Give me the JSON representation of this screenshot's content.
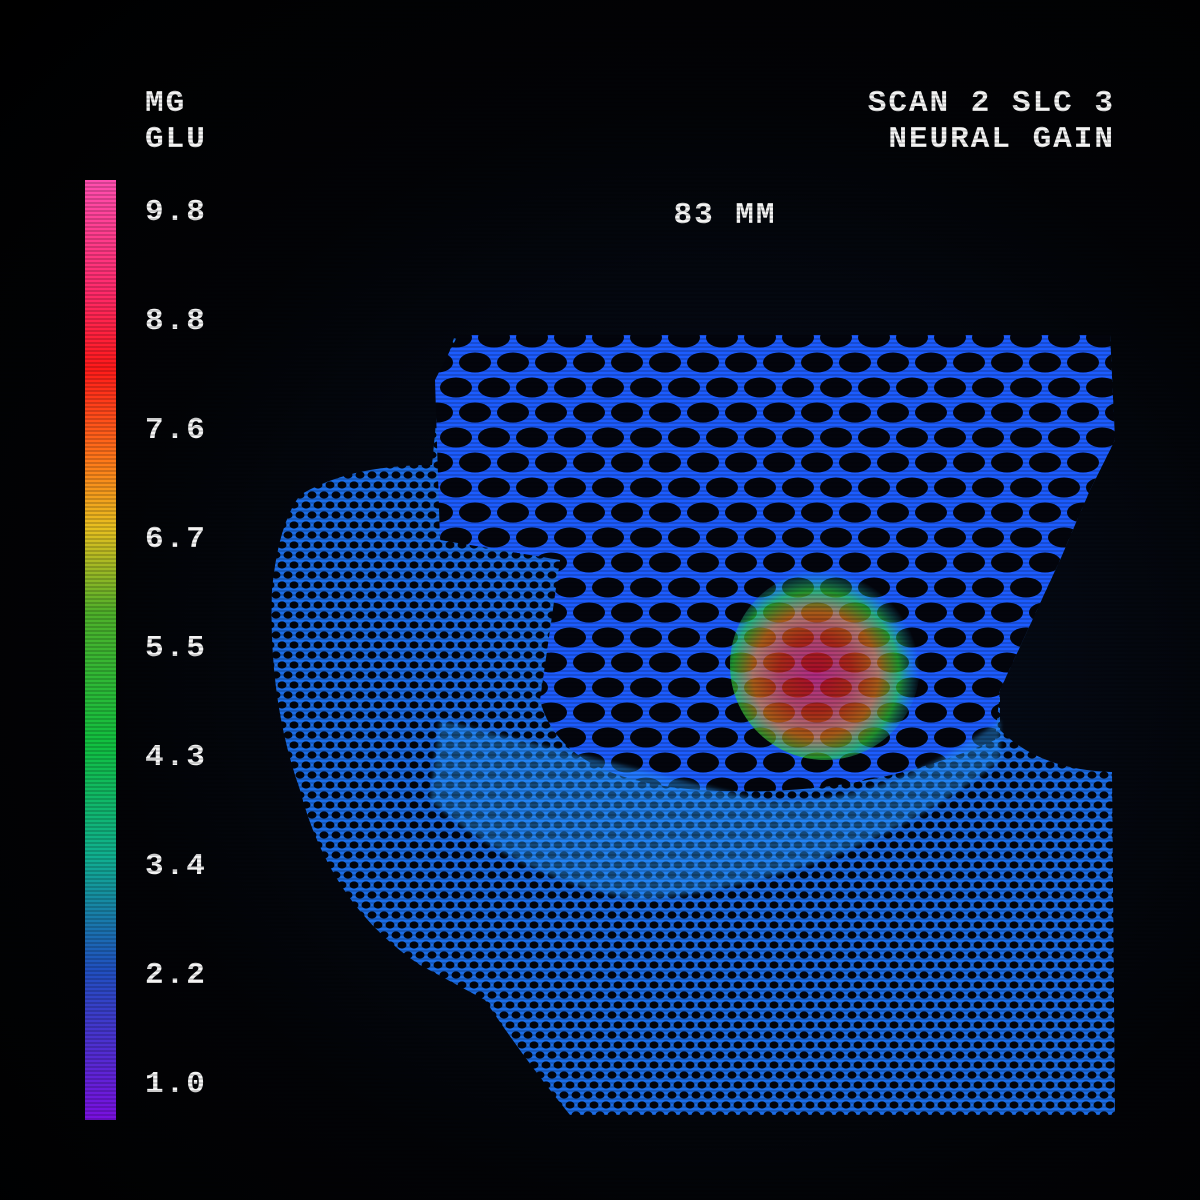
{
  "header": {
    "unit_lines": [
      "MG",
      "GLU"
    ],
    "scan_lines": [
      "SCAN 2 SLC 3",
      "NEURAL GAIN"
    ]
  },
  "depth_label": "83 MM",
  "color_scale": {
    "labels": [
      "9.8",
      "8.8",
      "7.6",
      "6.7",
      "5.5",
      "4.3",
      "3.4",
      "2.2",
      "1.0"
    ]
  }
}
